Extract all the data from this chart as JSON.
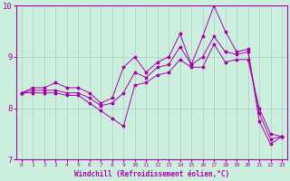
{
  "x": [
    0,
    1,
    2,
    3,
    4,
    5,
    6,
    7,
    8,
    9,
    10,
    11,
    12,
    13,
    14,
    15,
    16,
    17,
    18,
    19,
    20,
    21,
    22,
    23
  ],
  "y_high": [
    8.3,
    8.4,
    8.4,
    8.5,
    8.4,
    8.4,
    8.3,
    8.1,
    8.2,
    8.8,
    9.0,
    8.7,
    8.9,
    9.0,
    9.45,
    8.85,
    9.4,
    10.0,
    9.5,
    9.1,
    9.15,
    7.75,
    7.3,
    7.45
  ],
  "y_mid": [
    8.3,
    8.35,
    8.35,
    8.35,
    8.3,
    8.3,
    8.2,
    8.05,
    8.1,
    8.3,
    8.7,
    8.6,
    8.8,
    8.85,
    9.2,
    8.85,
    9.0,
    9.4,
    9.1,
    9.05,
    9.1,
    7.9,
    7.4,
    7.45
  ],
  "y_low": [
    8.3,
    8.3,
    8.3,
    8.3,
    8.25,
    8.25,
    8.1,
    7.95,
    7.8,
    7.65,
    8.45,
    8.5,
    8.65,
    8.7,
    8.95,
    8.8,
    8.8,
    9.25,
    8.9,
    8.95,
    8.95,
    8.0,
    7.5,
    7.45
  ],
  "line_color": "#AA00AA",
  "bg_color": "#CCEEDD",
  "grid_color": "#AACCCC",
  "xlabel": "Windchill (Refroidissement éolien,°C)",
  "ylim": [
    7.0,
    10.0
  ],
  "xlim": [
    -0.5,
    23.5
  ],
  "yticks": [
    7,
    8,
    9,
    10
  ],
  "xticks": [
    0,
    1,
    2,
    3,
    4,
    5,
    6,
    7,
    8,
    9,
    10,
    11,
    12,
    13,
    14,
    15,
    16,
    17,
    18,
    19,
    20,
    21,
    22,
    23
  ],
  "figsize": [
    3.2,
    2.0
  ],
  "dpi": 100
}
